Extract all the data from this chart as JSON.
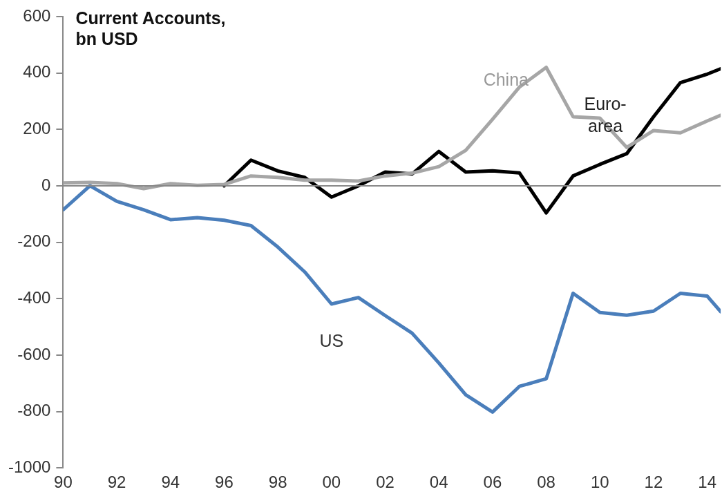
{
  "chart_data": {
    "type": "line",
    "title": "Current Accounts, bn USD",
    "x": [
      1990,
      1991,
      1992,
      1993,
      1994,
      1995,
      1996,
      1997,
      1998,
      1999,
      2000,
      2001,
      2002,
      2003,
      2004,
      2005,
      2006,
      2007,
      2008,
      2009,
      2010,
      2011,
      2012,
      2013,
      2014,
      2014.5
    ],
    "series": [
      {
        "name": "China",
        "color": "#a6a6a6",
        "values": [
          10,
          12,
          8,
          -10,
          8,
          2,
          5,
          35,
          30,
          20,
          20,
          17,
          35,
          45,
          68,
          126,
          236,
          350,
          420,
          245,
          240,
          136,
          196,
          188,
          230,
          250
        ]
      },
      {
        "name": "Euro-area",
        "color": "#000000",
        "values": [
          null,
          null,
          null,
          null,
          null,
          null,
          0,
          91,
          53,
          30,
          -40,
          0,
          49,
          42,
          122,
          49,
          53,
          46,
          -96,
          35,
          76,
          114,
          245,
          366,
          396,
          415
        ]
      },
      {
        "name": "US",
        "color": "#4a7ebb",
        "values": [
          -85,
          0,
          -55,
          -85,
          -120,
          -113,
          -122,
          -141,
          -217,
          -305,
          -419,
          -396,
          -460,
          -522,
          -628,
          -741,
          -802,
          -711,
          -684,
          -381,
          -449,
          -459,
          -444,
          -381,
          -391,
          -446
        ]
      }
    ],
    "xlim": [
      1990,
      2014.5
    ],
    "xticks": [
      {
        "value": 1990,
        "label": "90"
      },
      {
        "value": 1992,
        "label": "92"
      },
      {
        "value": 1994,
        "label": "94"
      },
      {
        "value": 1996,
        "label": "96"
      },
      {
        "value": 1998,
        "label": "98"
      },
      {
        "value": 2000,
        "label": "00"
      },
      {
        "value": 2002,
        "label": "02"
      },
      {
        "value": 2004,
        "label": "04"
      },
      {
        "value": 2006,
        "label": "06"
      },
      {
        "value": 2008,
        "label": "08"
      },
      {
        "value": 2010,
        "label": "10"
      },
      {
        "value": 2012,
        "label": "12"
      },
      {
        "value": 2014,
        "label": "14"
      }
    ],
    "ylim": [
      -1000,
      600
    ],
    "yticks": [
      -1000,
      -800,
      -600,
      -400,
      -200,
      0,
      200,
      400,
      600
    ],
    "ref_lines": [
      {
        "axis": "y",
        "value": 0,
        "color": "#888888"
      }
    ],
    "grid": false,
    "legend": false,
    "marker": "none",
    "line_style": "solid"
  }
}
